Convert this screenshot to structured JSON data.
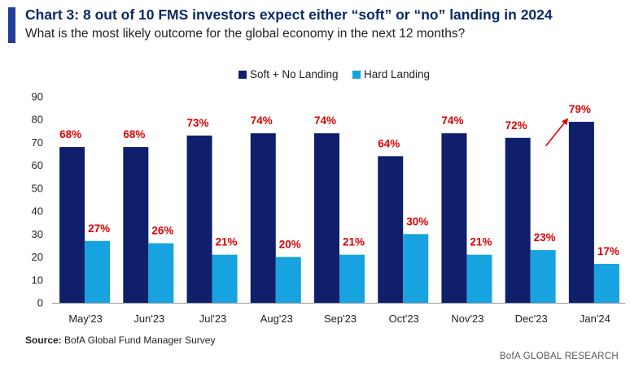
{
  "header": {
    "title": "Chart 3: 8 out of 10 FMS investors expect either “soft” or “no” landing in 2024",
    "subtitle": "What is the most likely outcome for the global economy in the next 12 months?"
  },
  "footer": {
    "source_label": "Source:",
    "source_text": "BofA Global Fund Manager Survey",
    "brand": "BofA GLOBAL RESEARCH"
  },
  "colors": {
    "accent": "#1f3d99",
    "soft_no_landing": "#0f1f6b",
    "hard_landing": "#16a3e0",
    "labels": "#e00000"
  },
  "chart_data": {
    "type": "bar",
    "title": "Chart 3: 8 out of 10 FMS investors expect either “soft” or “no” landing in 2024",
    "subtitle": "What is the most likely outcome for the global economy in the next 12 months?",
    "xlabel": "",
    "ylabel": "",
    "ylim": [
      0,
      90
    ],
    "yticks": [
      0,
      10,
      20,
      30,
      40,
      50,
      60,
      70,
      80,
      90
    ],
    "grid": false,
    "legend_position": "top",
    "categories": [
      "May'23",
      "Jun'23",
      "Jul'23",
      "Aug'23",
      "Sep'23",
      "Oct'23",
      "Nov'23",
      "Dec'23",
      "Jan'24"
    ],
    "series": [
      {
        "name": "Soft + No Landing",
        "color": "#0f1f6b",
        "values": [
          68,
          68,
          73,
          74,
          74,
          64,
          74,
          72,
          79
        ],
        "labels": [
          "68%",
          "68%",
          "73%",
          "74%",
          "74%",
          "64%",
          "74%",
          "72%",
          "79%"
        ]
      },
      {
        "name": "Hard Landing",
        "color": "#16a3e0",
        "values": [
          27,
          26,
          21,
          20,
          21,
          30,
          21,
          23,
          17
        ],
        "labels": [
          "27%",
          "26%",
          "21%",
          "20%",
          "21%",
          "30%",
          "21%",
          "23%",
          "17%"
        ]
      }
    ],
    "annotations": [
      {
        "type": "arrow",
        "from_category": "Dec'23",
        "to_category": "Jan'24",
        "color": "#e00000"
      }
    ]
  }
}
